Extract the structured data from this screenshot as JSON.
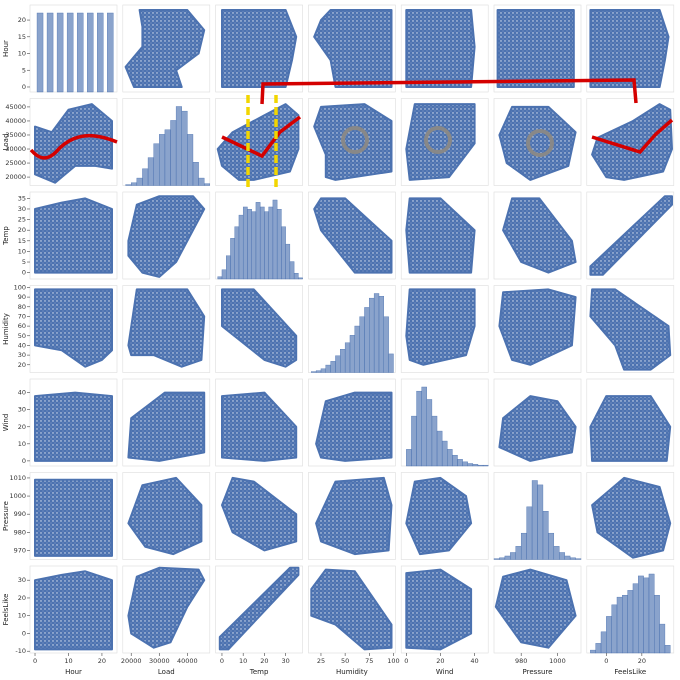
{
  "chart_data": {
    "type": "pairplot",
    "color": "#4c72b0",
    "variables": [
      {
        "name": "Hour",
        "lim": [
          -1.5,
          24.5
        ],
        "xticks": [
          0,
          10,
          20
        ],
        "yticks": [
          0,
          5,
          10,
          15,
          20
        ],
        "hist": {
          "bins": [
            0,
            3,
            6,
            9,
            12,
            15,
            18,
            21,
            24
          ],
          "counts": [
            10,
            10,
            10,
            10,
            10,
            10,
            10,
            10
          ]
        },
        "pairs": [
          {
            "own": [
              0,
              6,
              12,
              18,
              23,
              23,
              17,
              10,
              5,
              0
            ],
            "other": [
              21000,
              18000,
              24000,
              24000,
              23000,
              40000,
              46000,
              44000,
              36000,
              38000
            ]
          },
          {
            "own": [
              0,
              23,
              23,
              15,
              8,
              0
            ],
            "other": [
              0,
              0,
              30,
              35,
              33,
              30
            ]
          },
          {
            "own": [
              0,
              8,
              15,
              20,
              23,
              23,
              0
            ],
            "other": [
              40,
              35,
              18,
              25,
              35,
              98,
              98
            ]
          },
          {
            "own": [
              0,
              23,
              23,
              12,
              0
            ],
            "other": [
              0,
              0,
              38,
              40,
              38
            ]
          },
          {
            "own": [
              0,
              23,
              23,
              0
            ],
            "other": [
              967,
              967,
              1009,
              1009
            ]
          },
          {
            "own": [
              0,
              23,
              23,
              15,
              8,
              0
            ],
            "other": [
              -9,
              -9,
              30,
              35,
              33,
              30
            ]
          }
        ]
      },
      {
        "name": "Load",
        "lim": [
          17000,
          48000
        ],
        "xticks": [
          20000,
          30000,
          40000
        ],
        "yticks": [
          20000,
          25000,
          30000,
          35000,
          40000,
          45000
        ],
        "hist": {
          "bins": [
            18000,
            20000,
            22000,
            24000,
            26000,
            28000,
            30000,
            32000,
            34000,
            36000,
            38000,
            40000,
            42000,
            44000,
            46000,
            48000
          ],
          "counts": [
            1,
            3,
            8,
            18,
            30,
            45,
            55,
            60,
            70,
            85,
            80,
            55,
            25,
            8,
            2
          ]
        },
        "pairs": [
          {
            "own": [
              19000,
              22000,
              30000,
              42000,
              46000,
              42000,
              36000,
              30000,
              24000,
              19000
            ],
            "other": [
              15,
              32,
              36,
              36,
              30,
              20,
              5,
              -2,
              0,
              8
            ]
          },
          {
            "own": [
              19000,
              22000,
              40000,
              46000,
              45000,
              38000,
              28000,
              20000
            ],
            "other": [
              40,
              98,
              98,
              70,
              25,
              18,
              30,
              30
            ]
          },
          {
            "own": [
              19000,
              20000,
              32000,
              46000,
              46000,
              30000
            ],
            "other": [
              2,
              25,
              40,
              40,
              5,
              0
            ]
          },
          {
            "own": [
              19000,
              24000,
              36000,
              45000,
              45000,
              35000,
              25000
            ],
            "other": [
              985,
              1006,
              1010,
              995,
              975,
              968,
              972
            ]
          },
          {
            "own": [
              19000,
              22000,
              30000,
              44000,
              46000,
              40000,
              34000,
              28000,
              20000
            ],
            "other": [
              10,
              32,
              37,
              36,
              30,
              15,
              -5,
              -8,
              0
            ]
          }
        ]
      },
      {
        "name": "Temp",
        "lim": [
          -3,
          38
        ],
        "xticks": [
          0,
          10,
          20,
          30
        ],
        "yticks": [
          0,
          5,
          10,
          15,
          20,
          25,
          30,
          35
        ],
        "hist": {
          "bins": [
            -2,
            0,
            2,
            4,
            6,
            8,
            10,
            12,
            14,
            16,
            18,
            20,
            22,
            24,
            26,
            28,
            30,
            32,
            34,
            36,
            38
          ],
          "counts": [
            2,
            8,
            20,
            35,
            45,
            55,
            62,
            60,
            58,
            66,
            62,
            58,
            62,
            68,
            60,
            45,
            30,
            15,
            5,
            1
          ]
        },
        "pairs": [
          {
            "own": [
              0,
              15,
              35,
              35,
              30,
              20,
              0
            ],
            "other": [
              98,
              98,
              50,
              25,
              18,
              25,
              60
            ]
          },
          {
            "own": [
              0,
              0,
              20,
              35,
              35,
              20
            ],
            "other": [
              2,
              38,
              40,
              20,
              2,
              0
            ]
          },
          {
            "own": [
              0,
              5,
              15,
              35,
              35,
              20,
              5
            ],
            "other": [
              995,
              1010,
              1008,
              990,
              975,
              970,
              980
            ]
          },
          {
            "own": [
              -1,
              3,
              36,
              36,
              32,
              -1
            ],
            "other": [
              -9,
              -9,
              33,
              37,
              37,
              -2
            ]
          }
        ]
      },
      {
        "name": "Humidity",
        "lim": [
          12,
          102
        ],
        "xticks": [
          25,
          50,
          75,
          100
        ],
        "yticks": [
          20,
          30,
          40,
          50,
          60,
          70,
          80,
          90,
          100
        ],
        "hist": {
          "bins": [
            15,
            20,
            25,
            30,
            35,
            40,
            45,
            50,
            55,
            60,
            65,
            70,
            75,
            80,
            85,
            90,
            95,
            100
          ],
          "counts": [
            1,
            2,
            4,
            8,
            12,
            18,
            25,
            32,
            40,
            50,
            60,
            70,
            80,
            85,
            82,
            60,
            20
          ]
        },
        "pairs": [
          {
            "own": [
              20,
              30,
              60,
              98,
              98,
              50,
              25
            ],
            "other": [
              10,
              35,
              40,
              40,
              2,
              0,
              2
            ]
          },
          {
            "own": [
              20,
              40,
              90,
              98,
              95,
              60,
              25
            ],
            "other": [
              985,
              1008,
              1010,
              995,
              970,
              968,
              975
            ]
          },
          {
            "own": [
              15,
              30,
              60,
              98,
              98,
              70,
              40,
              15
            ],
            "other": [
              25,
              36,
              35,
              5,
              -8,
              -9,
              5,
              10
            ]
          }
        ]
      },
      {
        "name": "Wind",
        "lim": [
          -3,
          48
        ],
        "xticks": [
          0,
          20,
          40
        ],
        "yticks": [
          0,
          10,
          20,
          30,
          40
        ],
        "hist": {
          "bins": [
            0,
            3,
            6,
            9,
            12,
            15,
            18,
            21,
            24,
            27,
            30,
            33,
            36,
            39,
            42,
            45,
            48
          ],
          "counts": [
            20,
            60,
            90,
            95,
            80,
            60,
            42,
            30,
            20,
            13,
            8,
            5,
            3,
            2,
            1,
            1
          ]
        },
        "pairs": [
          {
            "own": [
              0,
              5,
              20,
              35,
              38,
              25,
              8
            ],
            "other": [
              985,
              1008,
              1010,
              1000,
              985,
              970,
              968
            ]
          },
          {
            "own": [
              0,
              0,
              20,
              38,
              38,
              20
            ],
            "other": [
              -8,
              34,
              36,
              25,
              0,
              -9
            ]
          }
        ]
      },
      {
        "name": "Pressure",
        "lim": [
          965,
          1013
        ],
        "xticks": [
          980,
          1000
        ],
        "yticks": [
          970,
          980,
          990,
          1000,
          1010
        ],
        "hist": {
          "bins": [
            965,
            968,
            971,
            974,
            977,
            980,
            983,
            986,
            989,
            992,
            995,
            998,
            1001,
            1004,
            1007,
            1010,
            1013
          ],
          "counts": [
            1,
            2,
            4,
            8,
            15,
            30,
            60,
            90,
            85,
            55,
            30,
            15,
            8,
            4,
            2,
            1
          ]
        },
        "pairs": [
          {
            "own": [
              966,
              970,
              985,
              1005,
              1010,
              995,
              980
            ],
            "other": [
              15,
              32,
              36,
              30,
              10,
              -8,
              -5
            ]
          }
        ]
      },
      {
        "name": "FeelsLike",
        "lim": [
          -11,
          38
        ],
        "xticks": [
          0,
          20
        ],
        "yticks": [
          -10,
          0,
          10,
          20,
          30
        ],
        "hist": {
          "bins": [
            -9,
            -6,
            -3,
            0,
            3,
            6,
            9,
            12,
            15,
            18,
            21,
            24,
            27,
            30,
            33,
            36
          ],
          "counts": [
            3,
            10,
            22,
            38,
            50,
            58,
            60,
            65,
            72,
            80,
            78,
            82,
            60,
            30,
            8
          ]
        },
        "pairs": []
      }
    ]
  }
}
